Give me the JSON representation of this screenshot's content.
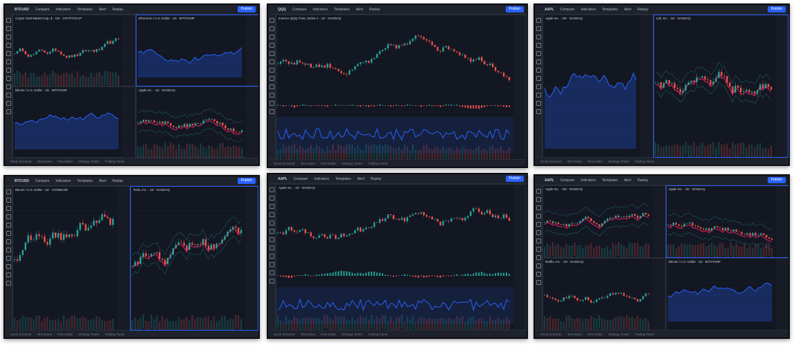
{
  "toolbar": [
    "Compare",
    "Indicators",
    "Templates",
    "Alert",
    "Replay"
  ],
  "publish": "Publish",
  "bottom_tabs": [
    "Stock Screener",
    "Text Notes",
    "Pine Editor",
    "Strategy Tester",
    "Trading Panel"
  ],
  "panels": [
    {
      "symbol": "BTCUSD",
      "charts": [
        "Crypto Total Market Cap, $ · 1W · CRYPTOCAP",
        "Ethereum / U.S. Dollar · 1D · BITSTAMP",
        "Bitcoin / U.S. Dollar · 1D · BITSTAMP",
        "Apple Inc. · 1D · NASDAQ"
      ]
    },
    {
      "symbol": "QQQ",
      "charts": [
        "Invesco QQQ Trust, Series 1 · 1D · NASDAQ"
      ]
    },
    {
      "symbol": "AAPL",
      "charts": [
        "Apple Inc. · 1W · NASDAQ",
        "Lyft, Inc. · 1D · NASDAQ"
      ]
    },
    {
      "symbol": "BTCUSD",
      "charts": [
        "Bitcoin / U.S. Dollar · 1D · COINBASE",
        "Tesla, Inc. · 1D · NASDAQ"
      ]
    },
    {
      "symbol": "AAPL",
      "charts": [
        "Apple Inc. · 1D · NASDAQ"
      ]
    },
    {
      "symbol": "AAPL",
      "charts": [
        "Apple Inc. · 1W · NASDAQ",
        "Apple Inc. · 1D · NASDAQ",
        "Netflix, Inc. · 1D · NASDAQ",
        "Bitcoin / U.S. Dollar · 1D · BITSTAMP"
      ]
    }
  ]
}
